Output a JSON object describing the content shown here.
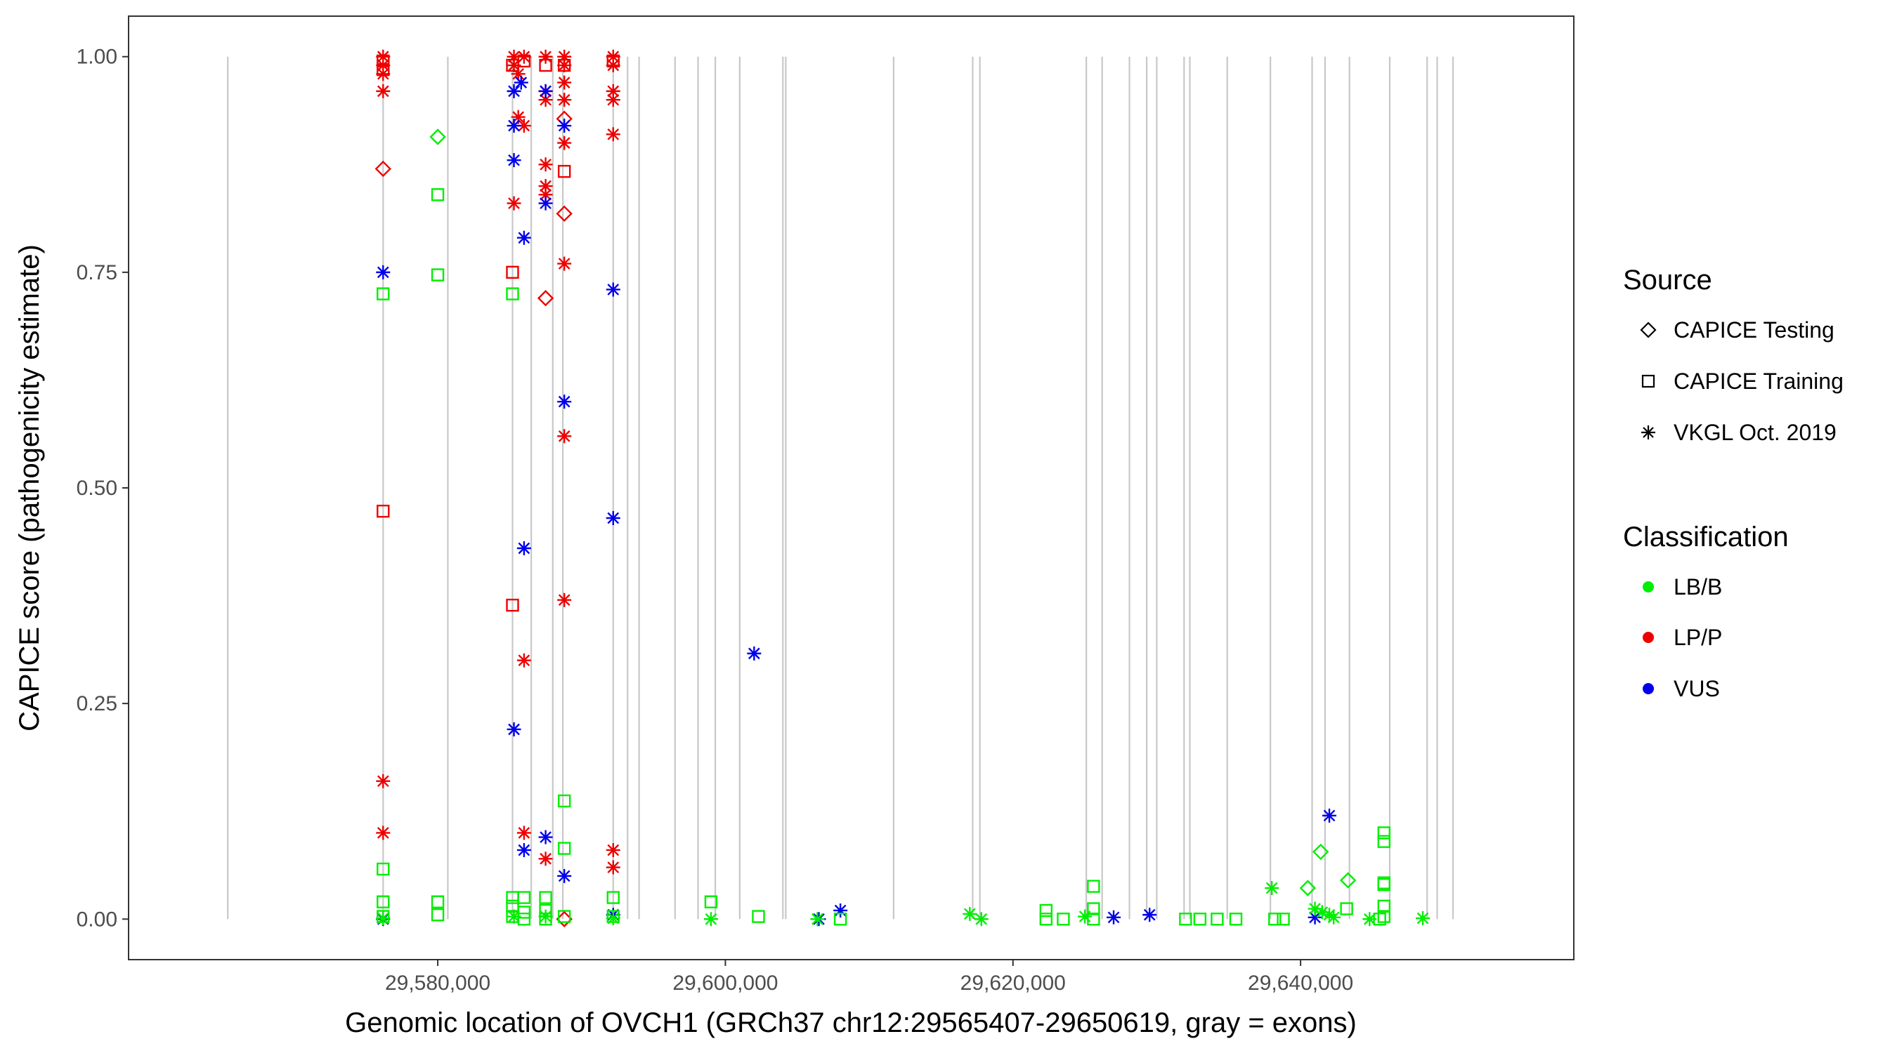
{
  "chart_data": {
    "type": "scatter",
    "xlabel": "Genomic location of OVCH1 (GRCh37 chr12:29565407-29650619, gray = exons)",
    "ylabel": "CAPICE score (pathogenicity estimate)",
    "xlim": [
      29558500,
      29659000
    ],
    "ylim": [
      -0.047,
      1.047
    ],
    "x_ticks": [
      29580000,
      29600000,
      29620000,
      29640000
    ],
    "x_tick_labels": [
      "29,580,000",
      "29,600,000",
      "29,620,000",
      "29,640,000"
    ],
    "y_ticks": [
      0,
      0.25,
      0.5,
      0.75,
      1.0
    ],
    "y_tick_labels": [
      "0.00",
      "0.25",
      "0.50",
      "0.75",
      "1.00"
    ],
    "exons_x": [
      29565400,
      29576200,
      29580700,
      29585200,
      29586500,
      29588000,
      29588700,
      29592200,
      29593200,
      29594000,
      29596500,
      29598100,
      29599300,
      29601000,
      29604000,
      29604200,
      29611700,
      29617200,
      29617700,
      29625100,
      29626200,
      29628100,
      29629300,
      29630000,
      29631900,
      29632300,
      29634900,
      29637900,
      29640800,
      29641700,
      29643400,
      29646200,
      29648800,
      29649500,
      29650600
    ],
    "legend": {
      "source": {
        "title": "Source",
        "items": [
          {
            "label": "CAPICE Testing",
            "shape": "diamond"
          },
          {
            "label": "CAPICE Training",
            "shape": "square"
          },
          {
            "label": "VKGL Oct. 2019",
            "shape": "asterisk"
          }
        ]
      },
      "classification": {
        "title": "Classification",
        "items": [
          {
            "label": "LB/B",
            "color": "#00ee00"
          },
          {
            "label": "LP/P",
            "color": "#ee0000"
          },
          {
            "label": "VUS",
            "color": "#0000ee"
          }
        ]
      }
    },
    "series": [
      {
        "name": "LP/P | VKGL Oct. 2019",
        "color": "#ee0000",
        "shape": "asterisk",
        "points": [
          [
            29576200,
            1.0
          ],
          [
            29576200,
            0.99
          ],
          [
            29576200,
            0.98
          ],
          [
            29576200,
            0.96
          ],
          [
            29576200,
            0.16
          ],
          [
            29576200,
            0.1
          ],
          [
            29585300,
            1.0
          ],
          [
            29585300,
            0.99
          ],
          [
            29585300,
            0.83
          ],
          [
            29585600,
            0.98
          ],
          [
            29585600,
            0.93
          ],
          [
            29586000,
            1.0
          ],
          [
            29586000,
            0.92
          ],
          [
            29586000,
            0.3
          ],
          [
            29586000,
            0.1
          ],
          [
            29587500,
            1.0
          ],
          [
            29587500,
            0.96
          ],
          [
            29587500,
            0.95
          ],
          [
            29587500,
            0.875
          ],
          [
            29587500,
            0.85
          ],
          [
            29587500,
            0.84
          ],
          [
            29587500,
            0.07
          ],
          [
            29588800,
            1.0
          ],
          [
            29588800,
            0.99
          ],
          [
            29588800,
            0.97
          ],
          [
            29588800,
            0.95
          ],
          [
            29588800,
            0.9
          ],
          [
            29588800,
            0.76
          ],
          [
            29588800,
            0.56
          ],
          [
            29588800,
            0.37
          ],
          [
            29592200,
            1.0
          ],
          [
            29592200,
            0.99
          ],
          [
            29592200,
            0.96
          ],
          [
            29592200,
            0.95
          ],
          [
            29592200,
            0.91
          ],
          [
            29592200,
            0.08
          ],
          [
            29592200,
            0.06
          ]
        ]
      },
      {
        "name": "LP/P | CAPICE Training",
        "color": "#ee0000",
        "shape": "square",
        "points": [
          [
            29576200,
            0.995
          ],
          [
            29576200,
            0.985
          ],
          [
            29576200,
            0.473
          ],
          [
            29585200,
            0.99
          ],
          [
            29585200,
            0.75
          ],
          [
            29585200,
            0.364
          ],
          [
            29586000,
            0.995
          ],
          [
            29587500,
            0.99
          ],
          [
            29588800,
            0.99
          ],
          [
            29588800,
            0.867
          ],
          [
            29592200,
            0.995
          ]
        ]
      },
      {
        "name": "LP/P | CAPICE Testing",
        "color": "#ee0000",
        "shape": "diamond",
        "points": [
          [
            29576200,
            0.87
          ],
          [
            29587500,
            0.72
          ],
          [
            29588800,
            0.928
          ],
          [
            29588800,
            0.818
          ],
          [
            29588800,
            0.0
          ]
        ]
      },
      {
        "name": "VUS | VKGL Oct. 2019",
        "color": "#0000ee",
        "shape": "asterisk",
        "points": [
          [
            29576200,
            0.75
          ],
          [
            29576200,
            0.0
          ],
          [
            29585300,
            0.96
          ],
          [
            29585300,
            0.92
          ],
          [
            29585300,
            0.88
          ],
          [
            29585300,
            0.22
          ],
          [
            29585800,
            0.97
          ],
          [
            29586000,
            0.79
          ],
          [
            29586000,
            0.43
          ],
          [
            29586000,
            0.08
          ],
          [
            29587500,
            0.96
          ],
          [
            29587500,
            0.83
          ],
          [
            29587500,
            0.095
          ],
          [
            29588800,
            0.92
          ],
          [
            29588800,
            0.6
          ],
          [
            29588800,
            0.05
          ],
          [
            29592200,
            0.73
          ],
          [
            29592200,
            0.465
          ],
          [
            29592200,
            0.005
          ],
          [
            29602000,
            0.308
          ],
          [
            29606500,
            0.0
          ],
          [
            29608000,
            0.01
          ],
          [
            29627000,
            0.002
          ],
          [
            29629500,
            0.005
          ],
          [
            29641000,
            0.002
          ],
          [
            29642000,
            0.12
          ]
        ]
      },
      {
        "name": "LB/B | CAPICE Training",
        "color": "#00ee00",
        "shape": "square",
        "points": [
          [
            29576200,
            0.725
          ],
          [
            29576200,
            0.058
          ],
          [
            29576200,
            0.02
          ],
          [
            29576200,
            0.003
          ],
          [
            29580000,
            0.84
          ],
          [
            29580000,
            0.747
          ],
          [
            29580000,
            0.02
          ],
          [
            29580000,
            0.005
          ],
          [
            29585200,
            0.725
          ],
          [
            29585200,
            0.025
          ],
          [
            29585200,
            0.015
          ],
          [
            29585200,
            0.003
          ],
          [
            29586000,
            0.025
          ],
          [
            29586000,
            0.008
          ],
          [
            29586000,
            0.0
          ],
          [
            29587500,
            0.025
          ],
          [
            29587500,
            0.01
          ],
          [
            29587500,
            0.0
          ],
          [
            29588800,
            0.137
          ],
          [
            29588800,
            0.082
          ],
          [
            29588800,
            0.003
          ],
          [
            29592200,
            0.025
          ],
          [
            29592200,
            0.003
          ],
          [
            29599000,
            0.02
          ],
          [
            29602300,
            0.003
          ],
          [
            29608000,
            0.0
          ],
          [
            29622300,
            0.01
          ],
          [
            29622300,
            0.0
          ],
          [
            29623500,
            0.0
          ],
          [
            29625600,
            0.038
          ],
          [
            29625600,
            0.012
          ],
          [
            29625600,
            0.0
          ],
          [
            29632000,
            0.0
          ],
          [
            29633000,
            0.0
          ],
          [
            29634200,
            0.0
          ],
          [
            29635500,
            0.0
          ],
          [
            29638200,
            0.0
          ],
          [
            29638800,
            0.0
          ],
          [
            29643200,
            0.012
          ],
          [
            29645500,
            0.0
          ],
          [
            29645800,
            0.1
          ],
          [
            29645800,
            0.09
          ],
          [
            29645800,
            0.042
          ],
          [
            29645800,
            0.04
          ],
          [
            29645800,
            0.015
          ],
          [
            29645800,
            0.003
          ]
        ]
      },
      {
        "name": "LB/B | VKGL Oct. 2019",
        "color": "#00ee00",
        "shape": "asterisk",
        "points": [
          [
            29576200,
            0.001
          ],
          [
            29585300,
            0.003
          ],
          [
            29587500,
            0.003
          ],
          [
            29592200,
            0.001
          ],
          [
            29599000,
            0.0
          ],
          [
            29606400,
            0.0
          ],
          [
            29617000,
            0.006
          ],
          [
            29617800,
            0.0
          ],
          [
            29625000,
            0.003
          ],
          [
            29638000,
            0.036
          ],
          [
            29641000,
            0.012
          ],
          [
            29641500,
            0.008
          ],
          [
            29642000,
            0.005
          ],
          [
            29642300,
            0.002
          ],
          [
            29644800,
            0.0
          ],
          [
            29648500,
            0.001
          ]
        ]
      },
      {
        "name": "LB/B | CAPICE Testing",
        "color": "#00ee00",
        "shape": "diamond",
        "points": [
          [
            29580000,
            0.907
          ],
          [
            29640500,
            0.036
          ],
          [
            29641400,
            0.078
          ],
          [
            29643300,
            0.045
          ]
        ]
      }
    ]
  }
}
